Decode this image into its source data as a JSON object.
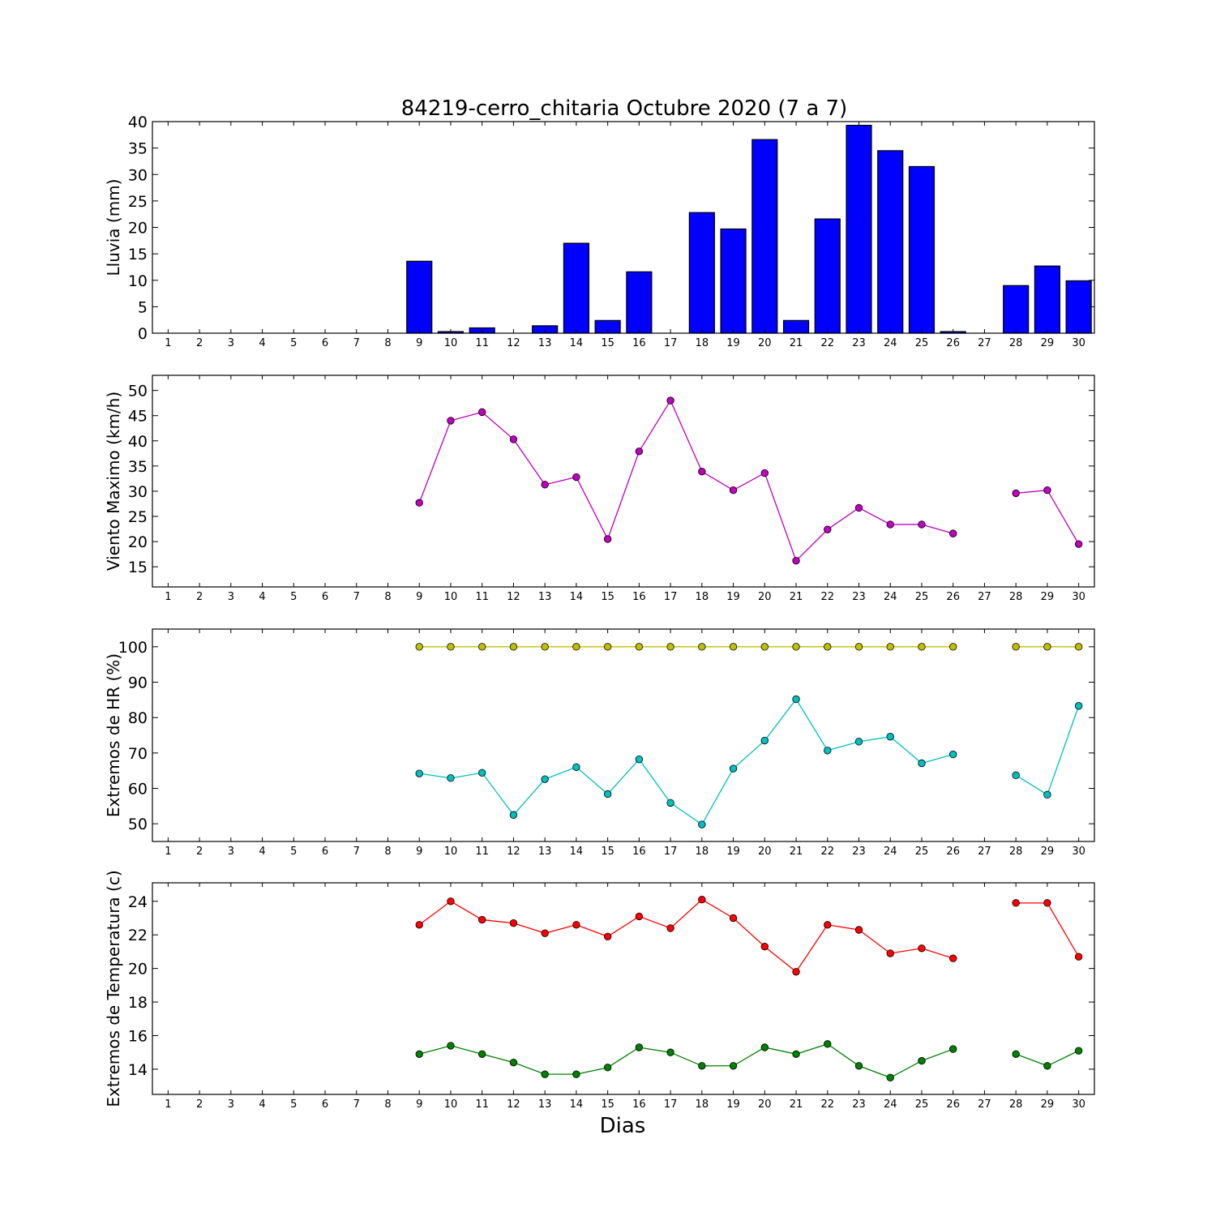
{
  "title": "84219-cerro_chitaria Octubre 2020  (7 a 7)",
  "xlabel": "Dias",
  "x_ticks": [
    "1",
    "2",
    "3",
    "4",
    "5",
    "6",
    "7",
    "8",
    "9",
    "10",
    "11",
    "12",
    "13",
    "14",
    "15",
    "16",
    "17",
    "18",
    "19",
    "20",
    "21",
    "22",
    "23",
    "24",
    "25",
    "26",
    "27",
    "28",
    "29",
    "30"
  ],
  "chart_data": [
    {
      "type": "bar",
      "ylabel": "Lluvia (mm)",
      "ylim": [
        0,
        40
      ],
      "yticks": [
        0,
        5,
        10,
        15,
        20,
        25,
        30,
        35,
        40
      ],
      "categories": [
        "1",
        "2",
        "3",
        "4",
        "5",
        "6",
        "7",
        "8",
        "9",
        "10",
        "11",
        "12",
        "13",
        "14",
        "15",
        "16",
        "17",
        "18",
        "19",
        "20",
        "21",
        "22",
        "23",
        "24",
        "25",
        "26",
        "27",
        "28",
        "29",
        "30"
      ],
      "values": [
        0,
        0,
        0,
        0,
        0,
        0,
        0,
        0,
        13.6,
        0.3,
        1.0,
        0,
        1.4,
        17.0,
        2.4,
        11.6,
        0,
        22.8,
        19.7,
        36.6,
        2.4,
        21.6,
        39.3,
        34.5,
        31.5,
        0.3,
        0,
        9.0,
        12.7,
        9.9
      ],
      "series": [
        {
          "values": [
            0,
            0,
            0,
            0,
            0,
            0,
            0,
            0,
            13.6,
            0.3,
            1.0,
            0,
            1.4,
            17.0,
            2.4,
            11.6,
            0,
            22.8,
            19.7,
            36.6,
            2.4,
            21.6,
            39.3,
            34.5,
            31.5,
            0.3,
            0,
            9.0,
            12.7,
            9.9
          ],
          "color": "#0000ff"
        }
      ]
    },
    {
      "type": "line",
      "ylabel": "Viento Maximo (km/h)",
      "ylim": [
        11,
        53
      ],
      "yticks": [
        15,
        20,
        25,
        30,
        35,
        40,
        45,
        50
      ],
      "x": [
        9,
        10,
        11,
        12,
        13,
        14,
        15,
        16,
        17,
        18,
        19,
        20,
        21,
        22,
        23,
        24,
        25,
        26,
        28,
        29,
        30
      ],
      "series": [
        {
          "color": "#bf00bf",
          "points": [
            [
              9,
              27.7
            ],
            [
              10,
              44.0
            ],
            [
              11,
              45.7
            ],
            [
              12,
              40.3
            ],
            [
              13,
              31.3
            ],
            [
              14,
              32.8
            ],
            [
              15,
              20.5
            ],
            [
              16,
              37.9
            ],
            [
              17,
              48.0
            ],
            [
              18,
              33.9
            ],
            [
              19,
              30.2
            ],
            [
              20,
              33.6
            ],
            [
              21,
              16.2
            ],
            [
              22,
              22.4
            ],
            [
              23,
              26.7
            ],
            [
              24,
              23.4
            ],
            [
              25,
              23.4
            ],
            [
              26,
              21.6
            ],
            [
              28,
              29.6
            ],
            [
              29,
              30.2
            ],
            [
              30,
              19.5
            ]
          ]
        }
      ]
    },
    {
      "type": "line",
      "ylabel": "Extremos de HR (%)",
      "ylim": [
        45,
        105
      ],
      "yticks": [
        50,
        60,
        70,
        80,
        90,
        100
      ],
      "series": [
        {
          "color": "#bfbf00",
          "points": [
            [
              9,
              100
            ],
            [
              10,
              100
            ],
            [
              11,
              100
            ],
            [
              12,
              100
            ],
            [
              13,
              100
            ],
            [
              14,
              100
            ],
            [
              15,
              100
            ],
            [
              16,
              100
            ],
            [
              17,
              100
            ],
            [
              18,
              100
            ],
            [
              19,
              100
            ],
            [
              20,
              100
            ],
            [
              21,
              100
            ],
            [
              22,
              100
            ],
            [
              23,
              100
            ],
            [
              24,
              100
            ],
            [
              25,
              100
            ],
            [
              26,
              100
            ],
            [
              28,
              100
            ],
            [
              29,
              100
            ],
            [
              30,
              100
            ]
          ]
        },
        {
          "color": "#00bfbf",
          "points": [
            [
              9,
              64.2
            ],
            [
              10,
              62.9
            ],
            [
              11,
              64.4
            ],
            [
              12,
              52.5
            ],
            [
              13,
              62.6
            ],
            [
              14,
              66.0
            ],
            [
              15,
              58.4
            ],
            [
              16,
              68.2
            ],
            [
              17,
              55.9
            ],
            [
              18,
              49.8
            ],
            [
              19,
              65.6
            ],
            [
              20,
              73.5
            ],
            [
              21,
              85.2
            ],
            [
              22,
              70.7
            ],
            [
              23,
              73.2
            ],
            [
              24,
              74.6
            ],
            [
              25,
              67.1
            ],
            [
              26,
              69.6
            ],
            [
              28,
              63.7
            ],
            [
              29,
              58.2
            ],
            [
              30,
              83.3
            ]
          ]
        }
      ]
    },
    {
      "type": "line",
      "ylabel": "Extremos de Temperatura (c)",
      "ylim": [
        12.5,
        25.1
      ],
      "yticks": [
        14,
        16,
        18,
        20,
        22,
        24
      ],
      "series": [
        {
          "color": "#ff0000",
          "points": [
            [
              9,
              22.6
            ],
            [
              10,
              24.0
            ],
            [
              11,
              22.9
            ],
            [
              12,
              22.7
            ],
            [
              13,
              22.1
            ],
            [
              14,
              22.6
            ],
            [
              15,
              21.9
            ],
            [
              16,
              23.1
            ],
            [
              17,
              22.4
            ],
            [
              18,
              24.1
            ],
            [
              19,
              23.0
            ],
            [
              20,
              21.3
            ],
            [
              21,
              19.8
            ],
            [
              22,
              22.6
            ],
            [
              23,
              22.3
            ],
            [
              24,
              20.9
            ],
            [
              25,
              21.2
            ],
            [
              26,
              20.6
            ],
            [
              28,
              23.9
            ],
            [
              29,
              23.9
            ],
            [
              30,
              20.7
            ]
          ]
        },
        {
          "color": "#008000",
          "points": [
            [
              9,
              14.9
            ],
            [
              10,
              15.4
            ],
            [
              11,
              14.9
            ],
            [
              12,
              14.4
            ],
            [
              13,
              13.7
            ],
            [
              14,
              13.7
            ],
            [
              15,
              14.1
            ],
            [
              16,
              15.3
            ],
            [
              17,
              15.0
            ],
            [
              18,
              14.2
            ],
            [
              19,
              14.2
            ],
            [
              20,
              15.3
            ],
            [
              21,
              14.9
            ],
            [
              22,
              15.5
            ],
            [
              23,
              14.2
            ],
            [
              24,
              13.5
            ],
            [
              25,
              14.5
            ],
            [
              26,
              15.2
            ],
            [
              28,
              14.9
            ],
            [
              29,
              14.2
            ],
            [
              30,
              15.1
            ]
          ]
        }
      ]
    }
  ]
}
